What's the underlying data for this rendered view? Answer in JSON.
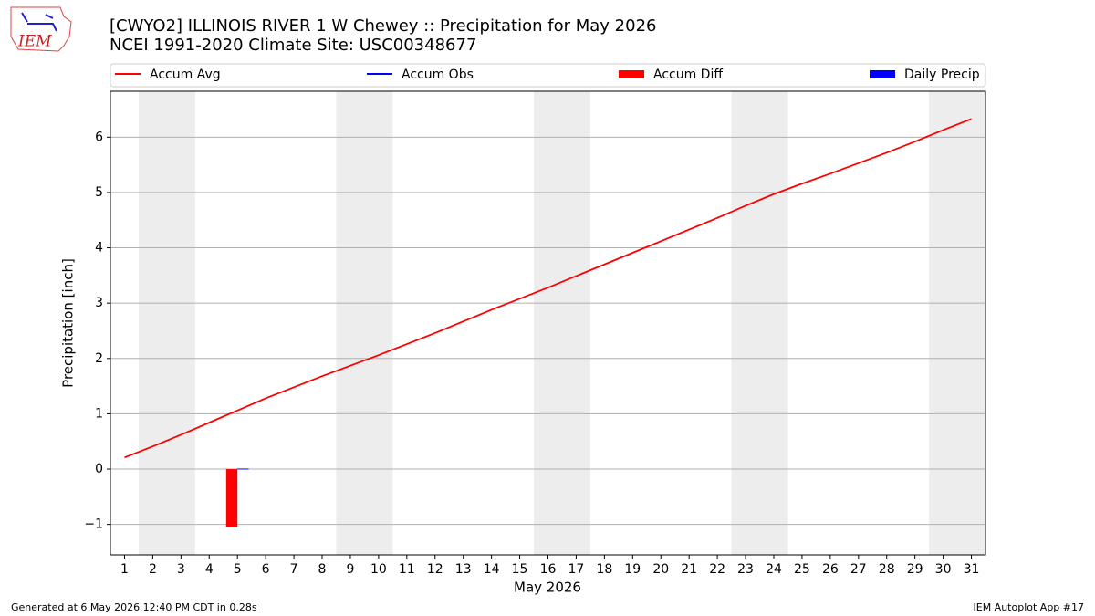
{
  "logo_text": "IEM",
  "footer": {
    "left": "Generated at 6 May 2026 12:40 PM CDT in 0.28s",
    "right": "IEM Autoplot App #17"
  },
  "chart_data": {
    "type": "line",
    "title": "[CWYO2] ILLINOIS RIVER 1 W Chewey :: Precipitation for May 2026",
    "subtitle": "NCEI 1991-2020 Climate Site: USC00348677",
    "x_label": "May 2026",
    "y_label": "Precipitation [inch]",
    "x": [
      1,
      2,
      3,
      4,
      5,
      6,
      7,
      8,
      9,
      10,
      11,
      12,
      13,
      14,
      15,
      16,
      17,
      18,
      19,
      20,
      21,
      22,
      23,
      24,
      25,
      26,
      27,
      28,
      29,
      30,
      31
    ],
    "xlim": [
      0.5,
      31.5
    ],
    "xticks": [
      1,
      2,
      3,
      4,
      5,
      6,
      7,
      8,
      9,
      10,
      11,
      12,
      13,
      14,
      15,
      16,
      17,
      18,
      19,
      20,
      21,
      22,
      23,
      24,
      25,
      26,
      27,
      28,
      29,
      30,
      31
    ],
    "ylim": [
      -1.55,
      6.83
    ],
    "yticks": [
      {
        "value": -1,
        "label": "−1"
      },
      0,
      1,
      2,
      3,
      4,
      5,
      6
    ],
    "grid": true,
    "legend": "top",
    "weekend_shading": [
      [
        1.5,
        3.5
      ],
      [
        8.5,
        10.5
      ],
      [
        15.5,
        17.5
      ],
      [
        22.5,
        24.5
      ],
      [
        29.5,
        31.5
      ]
    ],
    "weekend_color": "#ededed",
    "series": [
      {
        "name": "Accum Avg",
        "kind": "line",
        "color": "#ff0000",
        "values": [
          0.21,
          0.41,
          0.62,
          0.84,
          1.06,
          1.28,
          1.48,
          1.68,
          1.87,
          2.06,
          2.26,
          2.46,
          2.67,
          2.88,
          3.08,
          3.28,
          3.49,
          3.7,
          3.91,
          4.12,
          4.33,
          4.54,
          4.76,
          4.97,
          5.16,
          5.34,
          5.53,
          5.72,
          5.92,
          6.13,
          6.33
        ]
      },
      {
        "name": "Accum Obs",
        "kind": "line",
        "color": "#0000ff",
        "values": [
          null,
          null,
          null,
          null,
          0.01,
          null,
          null,
          null,
          null,
          null,
          null,
          null,
          null,
          null,
          null,
          null,
          null,
          null,
          null,
          null,
          null,
          null,
          null,
          null,
          null,
          null,
          null,
          null,
          null,
          null,
          null
        ]
      },
      {
        "name": "Accum Diff",
        "kind": "bar",
        "color": "#ff0000",
        "offset": -0.2,
        "width": 0.4,
        "values": [
          null,
          null,
          null,
          null,
          -1.05,
          null,
          null,
          null,
          null,
          null,
          null,
          null,
          null,
          null,
          null,
          null,
          null,
          null,
          null,
          null,
          null,
          null,
          null,
          null,
          null,
          null,
          null,
          null,
          null,
          null,
          null
        ]
      },
      {
        "name": "Daily Precip",
        "kind": "bar",
        "color": "#0000ff",
        "offset": 0.2,
        "width": 0.4,
        "values": [
          null,
          null,
          null,
          null,
          0.01,
          null,
          null,
          null,
          null,
          null,
          null,
          null,
          null,
          null,
          null,
          null,
          null,
          null,
          null,
          null,
          null,
          null,
          null,
          null,
          null,
          null,
          null,
          null,
          null,
          null,
          null
        ]
      }
    ]
  }
}
